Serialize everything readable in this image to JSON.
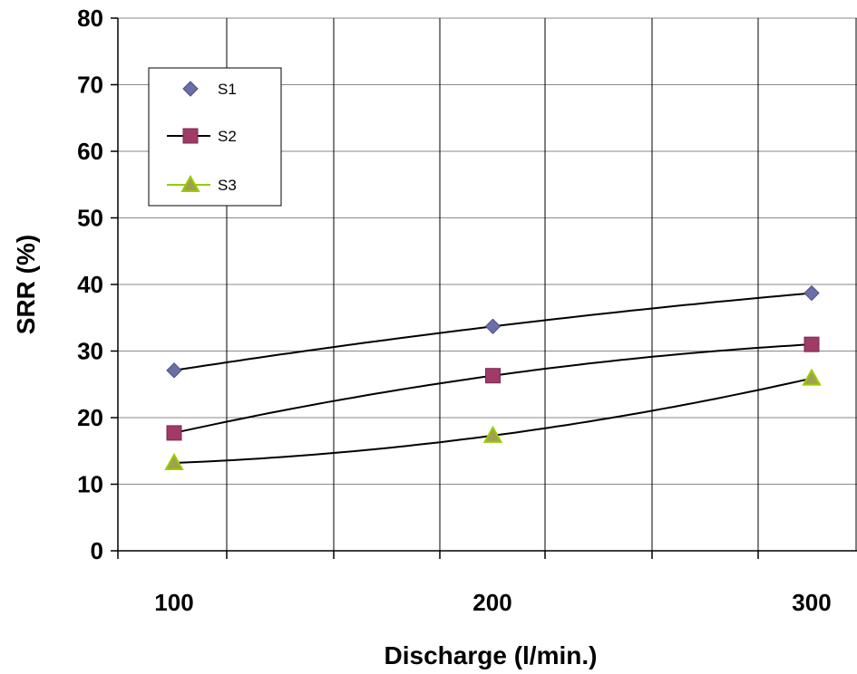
{
  "chart_data": {
    "type": "scatter",
    "xlabel": "Discharge (l/min.)",
    "ylabel": "SRR (%)",
    "ylim": [
      0,
      80
    ],
    "y_ticks": [
      "0",
      "10",
      "20",
      "30",
      "40",
      "50",
      "60",
      "70",
      "80"
    ],
    "x_tick_labels": [
      "100",
      "200",
      "300"
    ],
    "grid": true,
    "legend_position": "top-left",
    "series": [
      {
        "name": "S1",
        "marker": "diamond",
        "color": "#6B6FA8",
        "x": [
          100,
          200,
          300
        ],
        "values": [
          27.1,
          33.7,
          38.7
        ]
      },
      {
        "name": "S2",
        "marker": "square",
        "color": "#A03A66",
        "x": [
          100,
          200,
          300
        ],
        "values": [
          17.7,
          26.3,
          31.0
        ]
      },
      {
        "name": "S3",
        "marker": "triangle",
        "color": "#99CC00",
        "x": [
          100,
          200,
          300
        ],
        "values": [
          13.2,
          17.3,
          25.9
        ]
      }
    ],
    "trendlines": [
      {
        "series": "S1",
        "type": "polynomial",
        "values": [
          27.1,
          33.7,
          38.7
        ]
      },
      {
        "series": "S2",
        "type": "polynomial",
        "values": [
          17.7,
          26.3,
          31.0
        ]
      },
      {
        "series": "S3",
        "type": "polynomial",
        "values": [
          13.2,
          17.3,
          25.9
        ]
      }
    ]
  }
}
